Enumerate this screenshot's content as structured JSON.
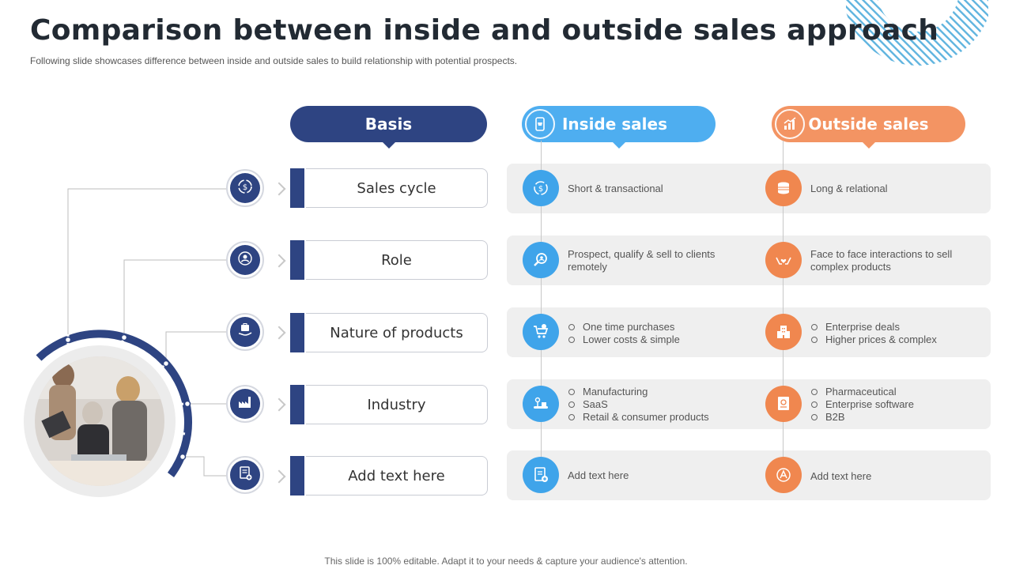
{
  "title": "Comparison between inside and outside sales approach",
  "subtitle": "Following slide showcases difference between inside and outside sales to build relationship with potential prospects.",
  "footer": "This slide is 100% editable. Adapt it to your needs & capture your audience's attention.",
  "headers": {
    "basis": "Basis",
    "inside": "Inside sales",
    "outside": "Outside sales"
  },
  "colors": {
    "navy": "#2e4482",
    "blue": "#3fa4ea",
    "orange": "#f0874f",
    "band": "#efefef"
  },
  "rows": [
    {
      "basis": "Sales cycle",
      "basis_icon": "dollar-cycle-icon",
      "inside_icon": "dollar-refresh-icon",
      "outside_icon": "coin-stack-icon",
      "inside": [
        "Short & transactional"
      ],
      "outside": [
        "Long & relational"
      ],
      "inside_bullets": false,
      "outside_bullets": false
    },
    {
      "basis": "Role",
      "basis_icon": "person-gear-icon",
      "inside_icon": "magnifier-person-icon",
      "outside_icon": "hands-heart-icon",
      "inside": [
        "Prospect, qualify & sell to clients remotely"
      ],
      "outside": [
        "Face to face interactions to sell complex products"
      ],
      "inside_bullets": false,
      "outside_bullets": false
    },
    {
      "basis": "Nature of products",
      "basis_icon": "hand-briefcase-icon",
      "inside_icon": "cart-icon",
      "outside_icon": "building-icon",
      "inside": [
        "One time purchases",
        "Lower costs & simple"
      ],
      "outside": [
        "Enterprise deals",
        "Higher prices & complex"
      ],
      "inside_bullets": true,
      "outside_bullets": true
    },
    {
      "basis": "Industry",
      "basis_icon": "factory-icon",
      "inside_icon": "conveyor-icon",
      "outside_icon": "certificate-icon",
      "inside": [
        "Manufacturing",
        "SaaS",
        "Retail & consumer products"
      ],
      "outside": [
        "Pharmaceutical",
        "Enterprise software",
        "B2B"
      ],
      "inside_bullets": true,
      "outside_bullets": true
    },
    {
      "basis": "Add text here",
      "basis_icon": "document-add-icon",
      "inside_icon": "document-add-icon",
      "outside_icon": "text-badge-icon",
      "inside": [
        "Add text here"
      ],
      "outside": [
        "Add text here"
      ],
      "inside_bullets": false,
      "outside_bullets": false
    }
  ]
}
